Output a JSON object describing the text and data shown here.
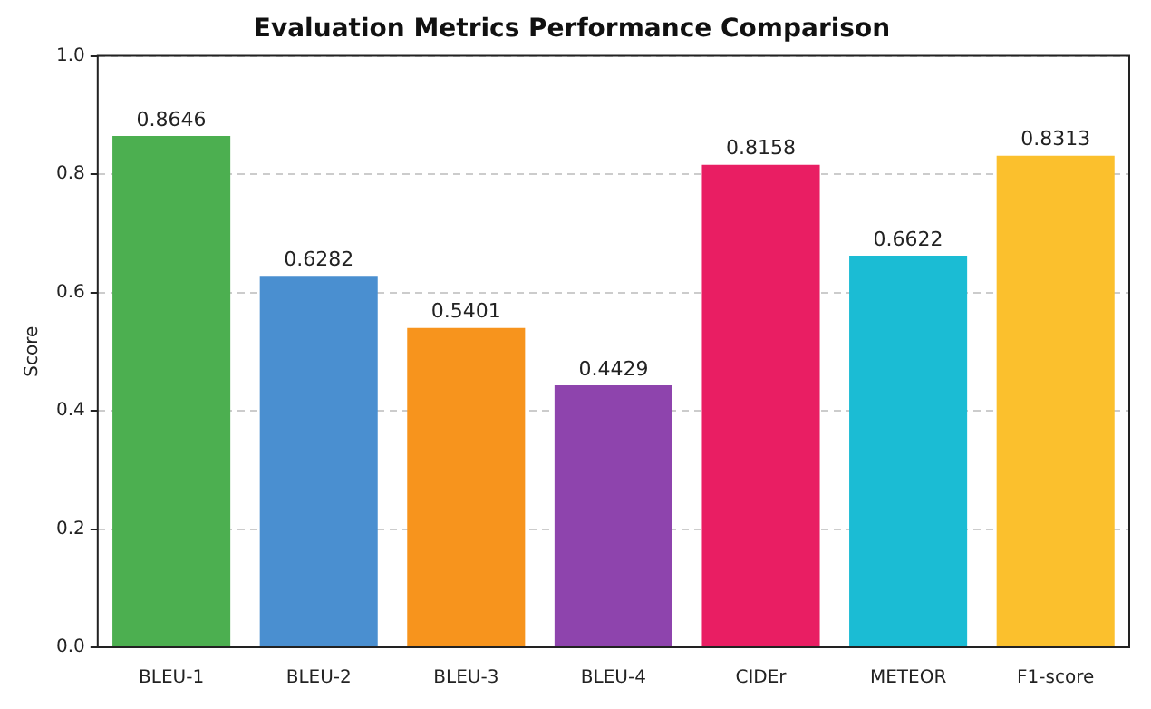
{
  "chart_data": {
    "type": "bar",
    "title": "Evaluation Metrics Performance Comparison",
    "ylabel": "Score",
    "categories": [
      "BLEU-1",
      "BLEU-2",
      "BLEU-3",
      "BLEU-4",
      "CIDEr",
      "METEOR",
      "F1-score"
    ],
    "values": [
      0.8646,
      0.6282,
      0.5401,
      0.4429,
      0.8158,
      0.6622,
      0.8313
    ],
    "colors": [
      "#4caf50",
      "#4a8fd0",
      "#f7941d",
      "#8e44ad",
      "#e91e63",
      "#1bbcd4",
      "#fbc02d"
    ],
    "ylim": [
      0,
      1
    ],
    "yticks": [
      {
        "value": 0,
        "label": "0.0"
      },
      {
        "value": 0.2,
        "label": "0.2"
      },
      {
        "value": 0.4,
        "label": "0.4"
      },
      {
        "value": 0.6,
        "label": "0.6"
      },
      {
        "value": 0.8,
        "label": "0.8"
      },
      {
        "value": 1,
        "label": "1.0"
      }
    ],
    "grid": "y",
    "data_labels": true
  }
}
